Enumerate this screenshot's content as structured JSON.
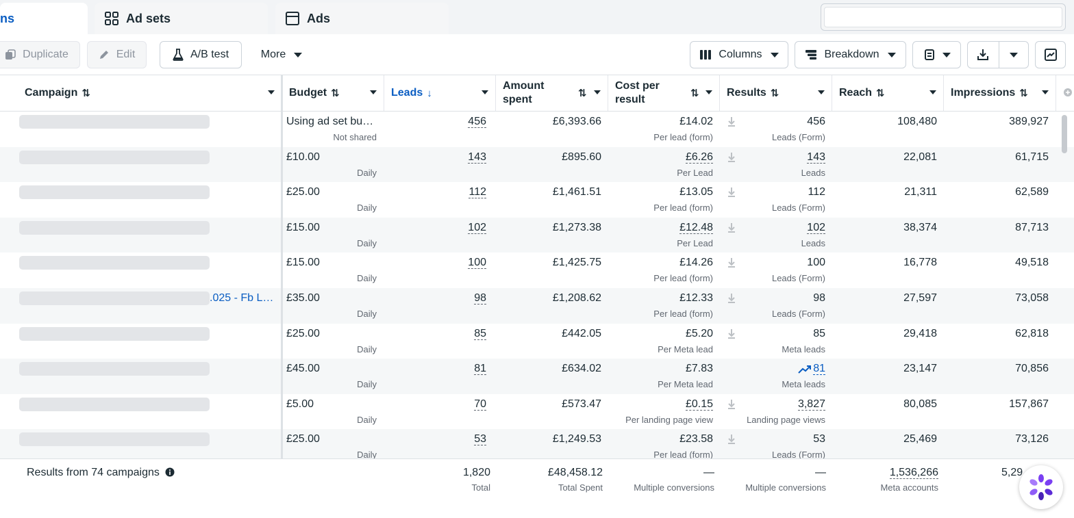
{
  "tabs": [
    {
      "label": "ns",
      "active": true
    },
    {
      "label": "Ad sets",
      "icon": "ad-sets-icon"
    },
    {
      "label": "Ads",
      "icon": "ads-icon"
    }
  ],
  "search": {
    "value": "",
    "placeholder": ""
  },
  "toolbar": {
    "duplicate": "Duplicate",
    "edit": "Edit",
    "ab_test": "A/B test",
    "more": "More",
    "columns": "Columns",
    "breakdown": "Breakdown"
  },
  "columns": {
    "campaign": "Campaign",
    "budget": "Budget",
    "leads": "Leads",
    "amount_spent_1": "Amount",
    "amount_spent_2": "spent",
    "cost_per_result_1": "Cost per",
    "cost_per_result_2": "result",
    "results": "Results",
    "reach": "Reach",
    "impressions": "Impressions"
  },
  "rows": [
    {
      "campaign_suffix": "",
      "budget": "Using ad set bu…",
      "budget_sub": "Not shared",
      "leads": "456",
      "spent": "£6,393.66",
      "cpr": "£14.02",
      "cpr_sub": "Per lead (form)",
      "results": "456",
      "results_sub": "Leads (Form)",
      "reach": "108,480",
      "impressions": "389,927"
    },
    {
      "campaign_suffix": "",
      "budget": "£10.00",
      "budget_sub": "Daily",
      "leads": "143",
      "spent": "£895.60",
      "cpr": "£6.26",
      "cpr_sub": "Per Lead",
      "results": "143",
      "results_sub": "Leads",
      "reach": "22,081",
      "impressions": "61,715"
    },
    {
      "campaign_suffix": "",
      "budget": "£25.00",
      "budget_sub": "Daily",
      "leads": "112",
      "spent": "£1,461.51",
      "cpr": "£13.05",
      "cpr_sub": "Per lead (form)",
      "results": "112",
      "results_sub": "Leads (Form)",
      "reach": "21,311",
      "impressions": "62,589"
    },
    {
      "campaign_suffix": "",
      "budget": "£15.00",
      "budget_sub": "Daily",
      "leads": "102",
      "spent": "£1,273.38",
      "cpr": "£12.48",
      "cpr_sub": "Per Lead",
      "results": "102",
      "results_sub": "Leads",
      "reach": "38,374",
      "impressions": "87,713"
    },
    {
      "campaign_suffix": "",
      "budget": "£15.00",
      "budget_sub": "Daily",
      "leads": "100",
      "spent": "£1,425.75",
      "cpr": "£14.26",
      "cpr_sub": "Per lead (form)",
      "results": "100",
      "results_sub": "Leads (Form)",
      "reach": "16,778",
      "impressions": "49,518"
    },
    {
      "campaign_suffix": ".025 - Fb L…",
      "budget": "£35.00",
      "budget_sub": "Daily",
      "leads": "98",
      "spent": "£1,208.62",
      "cpr": "£12.33",
      "cpr_sub": "Per lead (form)",
      "results": "98",
      "results_sub": "Leads (Form)",
      "reach": "27,597",
      "impressions": "73,058"
    },
    {
      "campaign_suffix": "",
      "budget": "£25.00",
      "budget_sub": "Daily",
      "leads": "85",
      "spent": "£442.05",
      "cpr": "£5.20",
      "cpr_sub": "Per Meta lead",
      "results": "85",
      "results_sub": "Meta leads",
      "reach": "29,418",
      "impressions": "62,818"
    },
    {
      "campaign_suffix": "",
      "budget": "£45.00",
      "budget_sub": "Daily",
      "leads": "81",
      "spent": "£634.02",
      "cpr": "£7.83",
      "cpr_sub": "Per Meta lead",
      "results": "81",
      "results_sub": "Meta leads",
      "reach": "23,147",
      "impressions": "70,856"
    },
    {
      "campaign_suffix": "",
      "budget": "£5.00",
      "budget_sub": "Daily",
      "leads": "70",
      "spent": "£573.47",
      "cpr": "£0.15",
      "cpr_sub": "Per landing page view",
      "results": "3,827",
      "results_sub": "Landing page views",
      "reach": "80,085",
      "impressions": "157,867"
    },
    {
      "campaign_suffix": "",
      "budget": "£25.00",
      "budget_sub": "Daily",
      "leads": "53",
      "spent": "£1,249.53",
      "cpr": "£23.58",
      "cpr_sub": "Per lead (form)",
      "results": "53",
      "results_sub": "Leads (Form)",
      "reach": "25,469",
      "impressions": "73,126"
    }
  ],
  "footer": {
    "label": "Results from 74 campaigns",
    "leads": "1,820",
    "leads_sub": "Total",
    "spent": "£48,458.12",
    "spent_sub": "Total Spent",
    "cpr": "—",
    "cpr_sub": "Multiple conversions",
    "results": "—",
    "results_sub": "Multiple conversions",
    "reach": "1,536,266",
    "reach_sub": "Meta accounts",
    "impressions": "5,29"
  },
  "colors": {
    "accent": "#0a5dc2",
    "text": "#1c2b33",
    "muted": "#606770"
  }
}
